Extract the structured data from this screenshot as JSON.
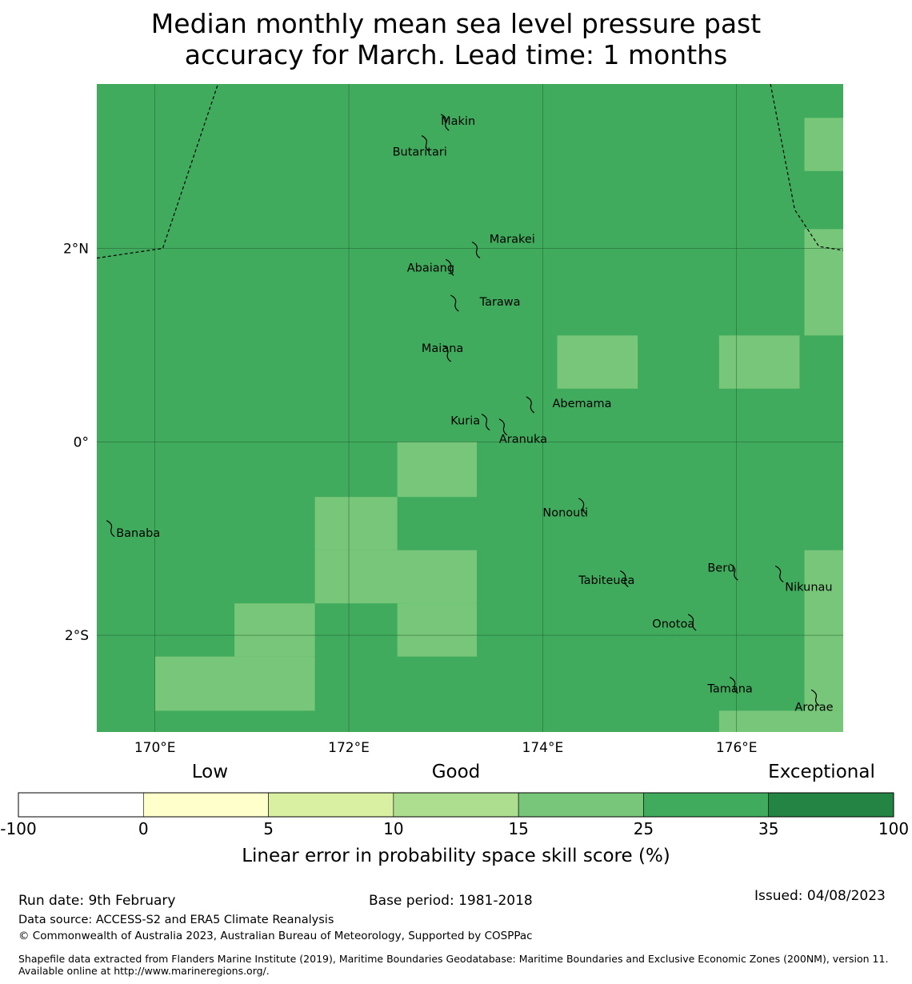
{
  "title": {
    "line1": "Median monthly mean sea level pressure past",
    "line2": "accuracy for March. Lead time: 1 months"
  },
  "map": {
    "lon_range": [
      169.4,
      177.1
    ],
    "lat_range": [
      -3.0,
      3.7
    ],
    "base_color": "#41ab5d",
    "light_color": "#78c679",
    "x_ticks": [
      {
        "value": 170,
        "label": "170°E"
      },
      {
        "value": 172,
        "label": "172°E"
      },
      {
        "value": 174,
        "label": "174°E"
      },
      {
        "value": 176,
        "label": "176°E"
      }
    ],
    "y_ticks": [
      {
        "value": 2,
        "label": "2°N"
      },
      {
        "value": 0,
        "label": "0°"
      },
      {
        "value": -2,
        "label": "2°S"
      }
    ],
    "light_cells": [
      {
        "lon": [
          176.7,
          177.5
        ],
        "lat": [
          2.8,
          3.35
        ]
      },
      {
        "lon": [
          176.7,
          177.5
        ],
        "lat": [
          1.1,
          2.2
        ]
      },
      {
        "lon": [
          174.15,
          174.98
        ],
        "lat": [
          0.55,
          1.1
        ]
      },
      {
        "lon": [
          175.82,
          176.65
        ],
        "lat": [
          0.55,
          1.1
        ]
      },
      {
        "lon": [
          172.5,
          173.32
        ],
        "lat": [
          -0.57,
          0.0
        ]
      },
      {
        "lon": [
          171.65,
          172.5
        ],
        "lat": [
          -1.12,
          -0.57
        ]
      },
      {
        "lon": [
          171.65,
          173.32
        ],
        "lat": [
          -1.67,
          -1.12
        ]
      },
      {
        "lon": [
          172.5,
          173.32
        ],
        "lat": [
          -2.22,
          -1.67
        ]
      },
      {
        "lon": [
          170.82,
          171.65
        ],
        "lat": [
          -2.22,
          -1.67
        ]
      },
      {
        "lon": [
          170.0,
          171.65
        ],
        "lat": [
          -2.78,
          -2.22
        ]
      },
      {
        "lon": [
          176.7,
          177.5
        ],
        "lat": [
          -2.78,
          -1.12
        ]
      },
      {
        "lon": [
          175.82,
          177.5
        ],
        "lat": [
          -3.2,
          -2.78
        ]
      }
    ],
    "boundaries": [
      [
        [
          169.4,
          1.9
        ],
        [
          170.08,
          2.0
        ],
        [
          170.65,
          3.7
        ]
      ],
      [
        [
          176.35,
          3.7
        ],
        [
          176.6,
          2.4
        ],
        [
          176.85,
          2.02
        ],
        [
          177.1,
          1.98
        ]
      ]
    ],
    "islands": [
      {
        "name": "Makin",
        "lon": 173.0,
        "lat": 3.32,
        "label_lon": 172.95,
        "label_lat": 3.32
      },
      {
        "name": "Butaritari",
        "lon": 172.8,
        "lat": 3.1,
        "label_lon": 172.45,
        "label_lat": 3.0
      },
      {
        "name": "Marakei",
        "lon": 173.32,
        "lat": 2.0,
        "label_lon": 173.45,
        "label_lat": 2.1
      },
      {
        "name": "Abaiang",
        "lon": 173.05,
        "lat": 1.82,
        "label_lon": 172.6,
        "label_lat": 1.8
      },
      {
        "name": "Tarawa",
        "lon": 173.1,
        "lat": 1.45,
        "label_lon": 173.35,
        "label_lat": 1.45
      },
      {
        "name": "Maiana",
        "lon": 173.02,
        "lat": 0.93,
        "label_lon": 172.75,
        "label_lat": 0.97
      },
      {
        "name": "Abemama",
        "lon": 173.88,
        "lat": 0.4,
        "label_lon": 174.1,
        "label_lat": 0.4
      },
      {
        "name": "Kuria",
        "lon": 173.42,
        "lat": 0.22,
        "label_lon": 173.05,
        "label_lat": 0.22
      },
      {
        "name": "Aranuka",
        "lon": 173.6,
        "lat": 0.17,
        "label_lon": 173.55,
        "label_lat": 0.03
      },
      {
        "name": "Nonouti",
        "lon": 174.42,
        "lat": -0.65,
        "label_lon": 174.0,
        "label_lat": -0.73
      },
      {
        "name": "Banaba",
        "lon": 169.55,
        "lat": -0.88,
        "label_lon": 169.6,
        "label_lat": -0.94
      },
      {
        "name": "Tabiteuea",
        "lon": 174.85,
        "lat": -1.4,
        "label_lon": 174.37,
        "label_lat": -1.43
      },
      {
        "name": "Beru",
        "lon": 175.98,
        "lat": -1.33,
        "label_lon": 175.7,
        "label_lat": -1.3
      },
      {
        "name": "Nikunau",
        "lon": 176.45,
        "lat": -1.35,
        "label_lon": 176.5,
        "label_lat": -1.5
      },
      {
        "name": "Onotoa",
        "lon": 175.55,
        "lat": -1.85,
        "label_lon": 175.13,
        "label_lat": -1.88
      },
      {
        "name": "Tamana",
        "lon": 175.98,
        "lat": -2.5,
        "label_lon": 175.7,
        "label_lat": -2.55
      },
      {
        "name": "Arorae",
        "lon": 176.82,
        "lat": -2.63,
        "label_lon": 176.6,
        "label_lat": -2.74
      }
    ]
  },
  "legend": {
    "bins": [
      {
        "from": "-100",
        "to": "0",
        "color": "#ffffff"
      },
      {
        "from": "0",
        "to": "5",
        "color": "#ffffcc"
      },
      {
        "from": "5",
        "to": "10",
        "color": "#d9f0a3"
      },
      {
        "from": "10",
        "to": "15",
        "color": "#addd8e"
      },
      {
        "from": "15",
        "to": "25",
        "color": "#78c679"
      },
      {
        "from": "25",
        "to": "35",
        "color": "#41ab5d"
      },
      {
        "from": "35",
        "to": "100",
        "color": "#238443"
      }
    ],
    "tick_labels": [
      "-100",
      "0",
      "5",
      "10",
      "15",
      "25",
      "35",
      "100"
    ],
    "categories": [
      "Low",
      "Good",
      "Exceptional"
    ],
    "axis_label": "Linear error in probability space skill score (%)"
  },
  "footer": {
    "run_date": "Run date: 9th February",
    "base_period": "Base period: 1981-2018",
    "issued": "Issued: 04/08/2023",
    "data_source": "Data source: ACCESS-S2 and ERA5 Climate Reanalysis",
    "copyright": "© Commonwealth of Australia 2023, Australian Bureau of Meteorology, Supported by COSPPac",
    "shapefile": "Shapefile data extracted from Flanders Marine Institute (2019), Maritime Boundaries Geodatabase: Maritime Boundaries and Exclusive Economic Zones (200NM), version 11. Available online at http://www.marineregions.org/."
  }
}
